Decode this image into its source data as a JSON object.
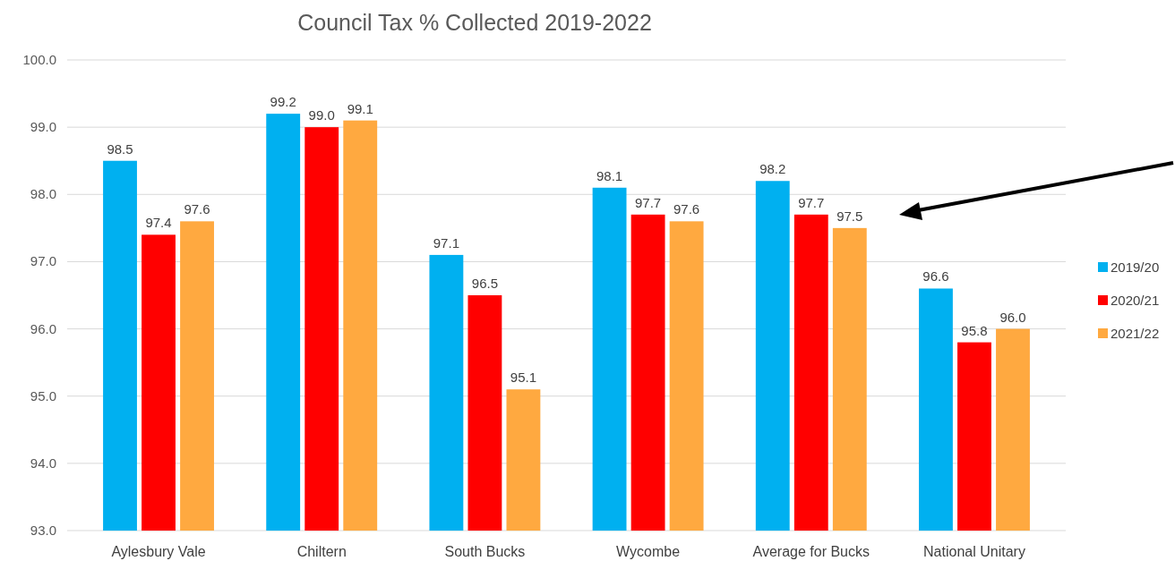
{
  "chart_data": {
    "type": "bar",
    "title": "Council Tax % Collected 2019-2022",
    "categories": [
      "Aylesbury Vale",
      "Chiltern",
      "South Bucks",
      "Wycombe",
      "Average for Bucks",
      "National Unitary"
    ],
    "series": [
      {
        "name": "2019/20",
        "color": "#00b0f0",
        "values": [
          98.5,
          99.2,
          97.1,
          98.1,
          98.2,
          96.6
        ],
        "value_labels": [
          "98.5",
          "99.2",
          "97.1",
          "98.1",
          "98.2",
          "96.6"
        ]
      },
      {
        "name": "2020/21",
        "color": "#ff0000",
        "values": [
          97.4,
          99.0,
          96.5,
          97.7,
          97.7,
          95.8
        ],
        "value_labels": [
          "97.4",
          "99.0",
          "96.5",
          "97.7",
          "97.7",
          "95.8"
        ]
      },
      {
        "name": "2021/22",
        "color": "#ffa940",
        "values": [
          97.6,
          99.1,
          95.1,
          97.6,
          97.5,
          96.0
        ],
        "value_labels": [
          "97.6",
          "99.1",
          "95.1",
          "97.6",
          "97.5",
          "96.0"
        ]
      }
    ],
    "ylim": [
      93,
      100
    ],
    "yticks": [
      {
        "value": 93,
        "label": "93.0"
      },
      {
        "value": 94,
        "label": "94.0"
      },
      {
        "value": 95,
        "label": "95.0"
      },
      {
        "value": 96,
        "label": "96.0"
      },
      {
        "value": 97,
        "label": "97.0"
      },
      {
        "value": 98,
        "label": "98.0"
      },
      {
        "value": 99,
        "label": "99.0"
      },
      {
        "value": 100,
        "label": "100.0"
      }
    ],
    "grid": "y",
    "legend": "right"
  }
}
